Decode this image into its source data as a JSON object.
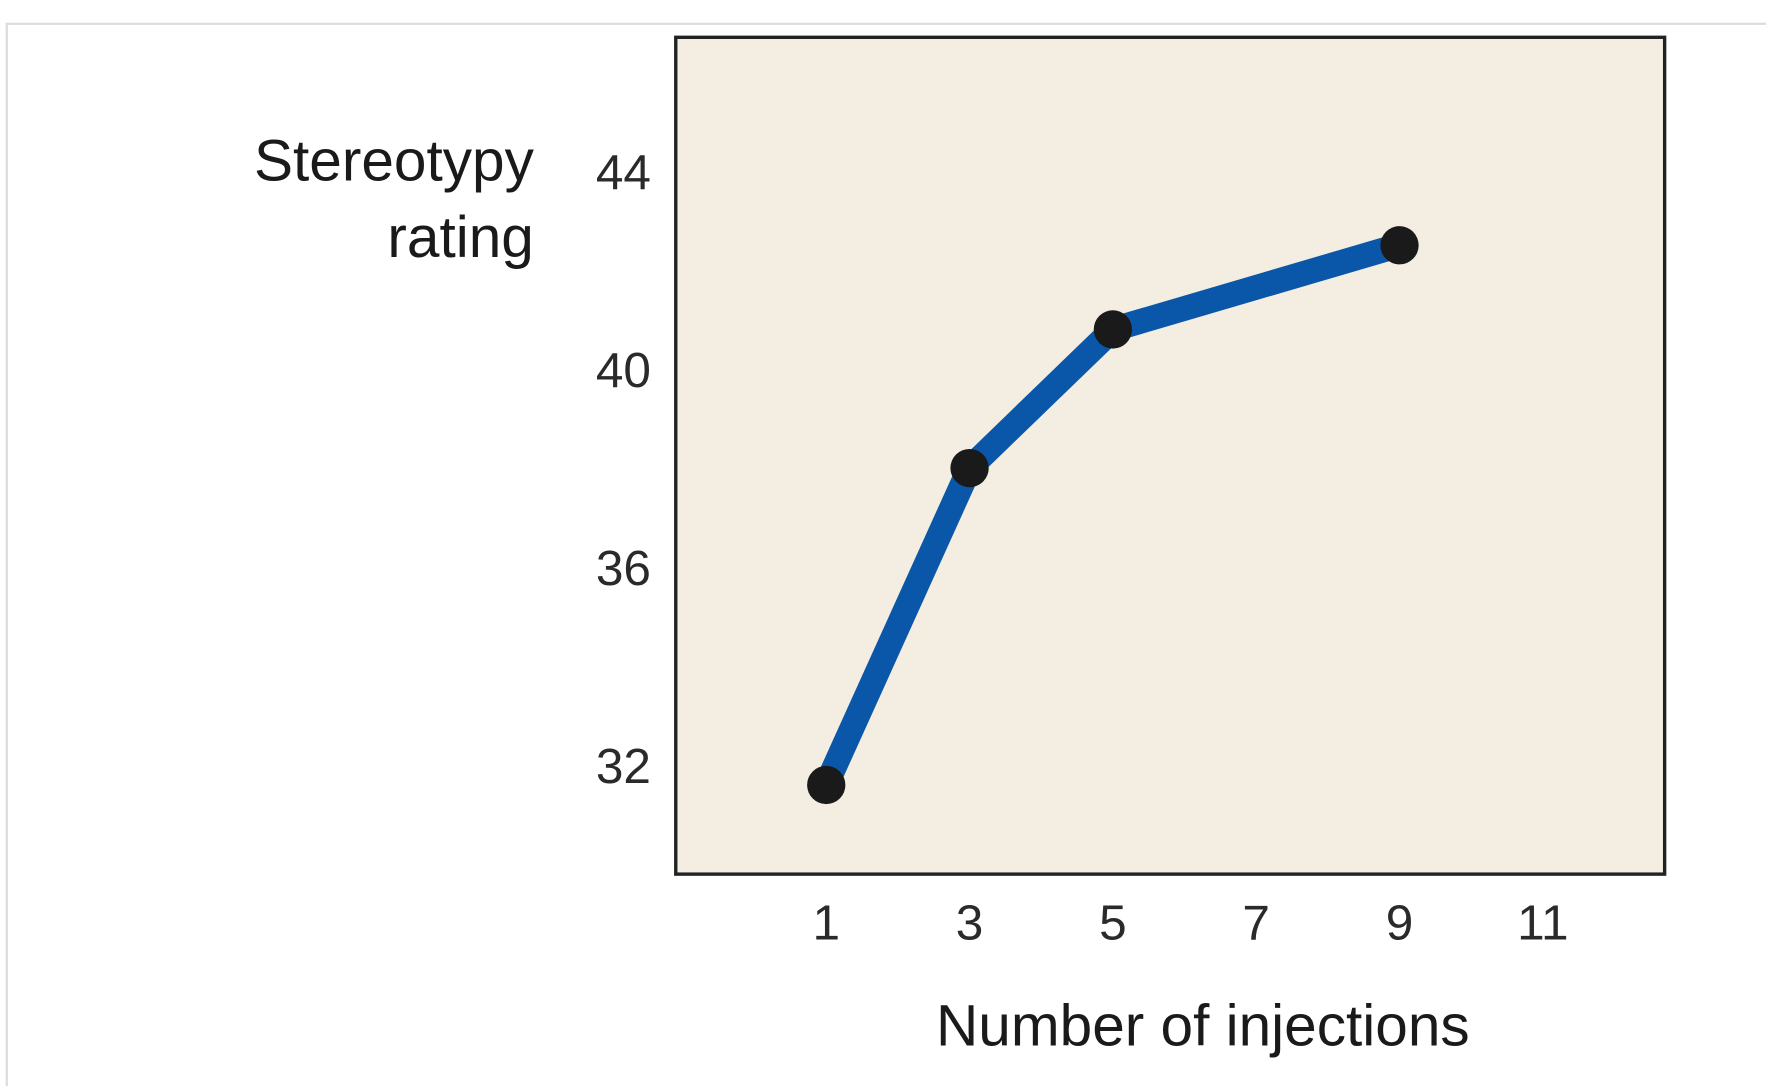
{
  "chart_data": {
    "type": "line",
    "title": "",
    "xlabel": "Number of injections",
    "ylabel": [
      "Stereotypy",
      "rating"
    ],
    "x": [
      1,
      3,
      5,
      9
    ],
    "series": [
      {
        "name": "Stereotypy rating",
        "values": [
          31.6,
          38.0,
          40.8,
          42.5
        ]
      }
    ],
    "xticks": [
      1,
      3,
      5,
      7,
      9,
      11
    ],
    "yticks": [
      32,
      36,
      40,
      44
    ],
    "xlim": [
      -1.1,
      12.7
    ],
    "ylim": [
      29.8,
      46.7
    ],
    "grid": false,
    "colors": {
      "line": "#0a56a8",
      "marker": "#1a1a1a",
      "plot_bg": "#f3ede2",
      "frame": "#222222"
    }
  }
}
